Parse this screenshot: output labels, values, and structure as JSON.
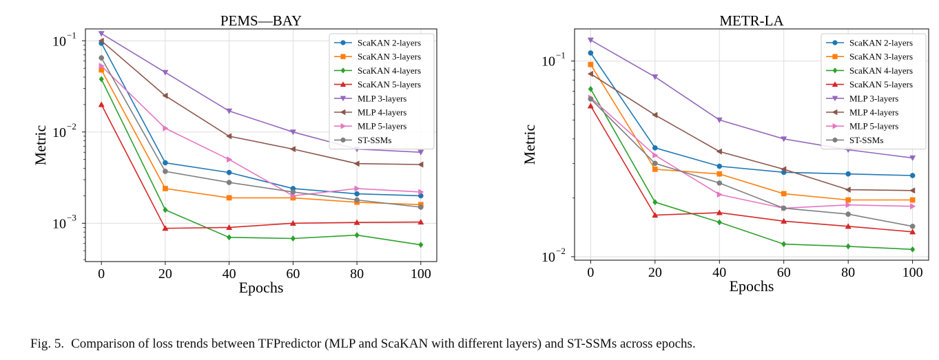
{
  "caption": {
    "label": "Fig. 5.",
    "text": "Comparison of loss trends between TFPredictor (MLP and ScaKAN with different layers) and ST-SSMs across epochs."
  },
  "chart_data": [
    {
      "type": "line",
      "title": "PEMS—BAY",
      "xlabel": "Epochs",
      "ylabel": "Metric",
      "yscale": "log",
      "grid": true,
      "legend": "top-right",
      "xlim": [
        -5,
        105
      ],
      "ylim": [
        0.00038,
        0.135
      ],
      "xticks": [
        0,
        20,
        40,
        60,
        80,
        100
      ],
      "xtick_labels": [
        "0",
        "20",
        "40",
        "60",
        "80",
        "100"
      ],
      "yticks": [
        0.001,
        0.01,
        0.1
      ],
      "ytick_labels": [
        [
          "10",
          "−3"
        ],
        [
          "10",
          "−2"
        ],
        [
          "10",
          "−1"
        ]
      ],
      "x": [
        0,
        20,
        40,
        60,
        80,
        100
      ],
      "series": [
        {
          "name": "ScaKAN 2-layers",
          "color": "#1f77b4",
          "marker": "circle",
          "values": [
            0.094,
            0.0046,
            0.0036,
            0.0024,
            0.0021,
            0.002
          ]
        },
        {
          "name": "ScaKAN 3-layers",
          "color": "#ff7f0e",
          "marker": "square",
          "values": [
            0.048,
            0.0024,
            0.0019,
            0.0019,
            0.0017,
            0.0016
          ]
        },
        {
          "name": "ScaKAN 4-layers",
          "color": "#2ca02c",
          "marker": "diamond",
          "values": [
            0.038,
            0.0014,
            0.0007,
            0.00068,
            0.00074,
            0.00058
          ]
        },
        {
          "name": "ScaKAN 5-layers",
          "color": "#d62728",
          "marker": "triangle-up",
          "values": [
            0.02,
            0.00088,
            0.0009,
            0.001,
            0.00102,
            0.00103
          ]
        },
        {
          "name": "MLP 3-layers",
          "color": "#9467bd",
          "marker": "triangle-down",
          "values": [
            0.12,
            0.045,
            0.017,
            0.01,
            0.0065,
            0.006
          ]
        },
        {
          "name": "MLP 4-layers",
          "color": "#8c564b",
          "marker": "triangle-left",
          "values": [
            0.1,
            0.025,
            0.009,
            0.0065,
            0.0045,
            0.0044
          ]
        },
        {
          "name": "MLP 5-layers",
          "color": "#e377c2",
          "marker": "triangle-right",
          "values": [
            0.053,
            0.011,
            0.005,
            0.002,
            0.0024,
            0.0022
          ]
        },
        {
          "name": "ST-SSMs",
          "color": "#7f7f7f",
          "marker": "circle",
          "values": [
            0.065,
            0.0037,
            0.0028,
            0.0022,
            0.0018,
            0.0015
          ]
        }
      ]
    },
    {
      "type": "line",
      "title": "METR-LA",
      "xlabel": "Epochs",
      "ylabel": "Metric",
      "yscale": "log",
      "grid": true,
      "legend": "top-right",
      "xlim": [
        -5,
        105
      ],
      "ylim": [
        0.0096,
        0.146
      ],
      "xticks": [
        0,
        20,
        40,
        60,
        80,
        100
      ],
      "xtick_labels": [
        "0",
        "20",
        "40",
        "60",
        "80",
        "100"
      ],
      "yticks": [
        0.01,
        0.1
      ],
      "ytick_labels": [
        [
          "10",
          "−2"
        ],
        [
          "10",
          "−1"
        ]
      ],
      "x": [
        0,
        20,
        40,
        60,
        80,
        100
      ],
      "series": [
        {
          "name": "ScaKAN 2-layers",
          "color": "#1f77b4",
          "marker": "circle",
          "values": [
            0.11,
            0.036,
            0.029,
            0.027,
            0.0265,
            0.026
          ]
        },
        {
          "name": "ScaKAN 3-layers",
          "color": "#ff7f0e",
          "marker": "square",
          "values": [
            0.096,
            0.028,
            0.0265,
            0.021,
            0.0195,
            0.0195
          ]
        },
        {
          "name": "ScaKAN 4-layers",
          "color": "#2ca02c",
          "marker": "diamond",
          "values": [
            0.072,
            0.019,
            0.015,
            0.0116,
            0.0113,
            0.0109
          ]
        },
        {
          "name": "ScaKAN 5-layers",
          "color": "#d62728",
          "marker": "triangle-up",
          "values": [
            0.059,
            0.0163,
            0.0168,
            0.0152,
            0.0143,
            0.0134
          ]
        },
        {
          "name": "MLP 3-layers",
          "color": "#9467bd",
          "marker": "triangle-down",
          "values": [
            0.128,
            0.083,
            0.05,
            0.04,
            0.0352,
            0.032
          ]
        },
        {
          "name": "MLP 4-layers",
          "color": "#8c564b",
          "marker": "triangle-left",
          "values": [
            0.086,
            0.053,
            0.0345,
            0.028,
            0.022,
            0.0218
          ]
        },
        {
          "name": "MLP 5-layers",
          "color": "#e377c2",
          "marker": "triangle-right",
          "values": [
            0.065,
            0.033,
            0.0208,
            0.0177,
            0.0184,
            0.0181
          ]
        },
        {
          "name": "ST-SSMs",
          "color": "#7f7f7f",
          "marker": "circle",
          "values": [
            0.064,
            0.03,
            0.0238,
            0.0177,
            0.0165,
            0.0143
          ]
        }
      ]
    }
  ]
}
